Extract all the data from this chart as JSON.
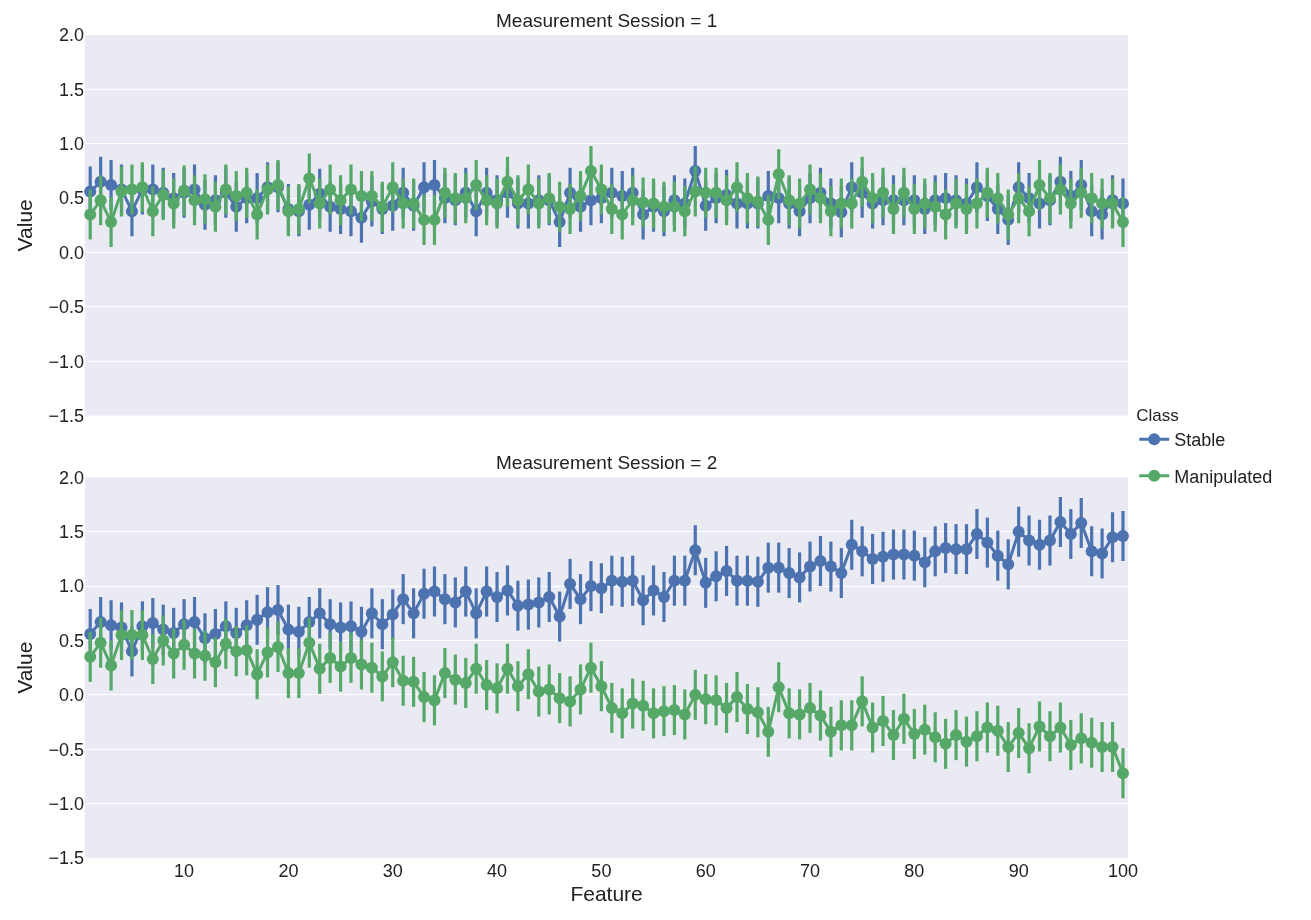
{
  "chart_data": [
    {
      "type": "line",
      "title": "Measurement Session = 1",
      "ylabel": "Value",
      "legend_title": "Class",
      "legend": "right",
      "xlim": [
        0.5,
        100.5
      ],
      "xticks": [
        10,
        20,
        30,
        40,
        50,
        60,
        70,
        80,
        90,
        100
      ],
      "ylim": [
        -1.5,
        2.0
      ],
      "yticks": [
        {
          "value": -1.5,
          "label": "−1.5"
        },
        {
          "value": -1.0,
          "label": "−1.0"
        },
        {
          "value": -0.5,
          "label": "−0.5"
        },
        {
          "value": 0.0,
          "label": "0.0"
        },
        {
          "value": 0.5,
          "label": "0.5"
        },
        {
          "value": 1.0,
          "label": "1.0"
        },
        {
          "value": 1.5,
          "label": "1.5"
        },
        {
          "value": 2.0,
          "label": "2.0"
        }
      ],
      "grid": "y",
      "marker": "circle",
      "tick_labels": "y",
      "x": [
        1,
        2,
        3,
        4,
        5,
        6,
        7,
        8,
        9,
        10,
        11,
        12,
        13,
        14,
        15,
        16,
        17,
        18,
        19,
        20,
        21,
        22,
        23,
        24,
        25,
        26,
        27,
        28,
        29,
        30,
        31,
        32,
        33,
        34,
        35,
        36,
        37,
        38,
        39,
        40,
        41,
        42,
        43,
        44,
        45,
        46,
        47,
        48,
        49,
        50,
        51,
        52,
        53,
        54,
        55,
        56,
        57,
        58,
        59,
        60,
        61,
        62,
        63,
        64,
        65,
        66,
        67,
        68,
        69,
        70,
        71,
        72,
        73,
        74,
        75,
        76,
        77,
        78,
        79,
        80,
        81,
        82,
        83,
        84,
        85,
        86,
        87,
        88,
        89,
        90,
        91,
        92,
        93,
        94,
        95,
        96,
        97,
        98,
        99,
        100
      ],
      "series": [
        {
          "name": "Stable",
          "color": "#4c72b0",
          "values": [
            0.56,
            0.65,
            0.62,
            0.58,
            0.38,
            0.58,
            0.58,
            0.55,
            0.5,
            0.55,
            0.58,
            0.44,
            0.48,
            0.55,
            0.42,
            0.5,
            0.5,
            0.6,
            0.6,
            0.4,
            0.38,
            0.44,
            0.54,
            0.42,
            0.4,
            0.38,
            0.32,
            0.47,
            0.4,
            0.43,
            0.55,
            0.43,
            0.6,
            0.62,
            0.5,
            0.48,
            0.55,
            0.38,
            0.55,
            0.48,
            0.55,
            0.45,
            0.45,
            0.48,
            0.48,
            0.28,
            0.55,
            0.42,
            0.48,
            0.5,
            0.55,
            0.52,
            0.55,
            0.35,
            0.42,
            0.38,
            0.48,
            0.45,
            0.75,
            0.43,
            0.5,
            0.53,
            0.45,
            0.45,
            0.45,
            0.52,
            0.5,
            0.45,
            0.38,
            0.5,
            0.55,
            0.45,
            0.37,
            0.6,
            0.55,
            0.45,
            0.48,
            0.48,
            0.48,
            0.48,
            0.4,
            0.48,
            0.5,
            0.48,
            0.45,
            0.6,
            0.52,
            0.4,
            0.3,
            0.6,
            0.5,
            0.45,
            0.48,
            0.65,
            0.52,
            0.62,
            0.38,
            0.35,
            0.48,
            0.45
          ],
          "errors": [
            0.23,
            0.23,
            0.23,
            0.23,
            0.23,
            0.23,
            0.23,
            0.23,
            0.23,
            0.23,
            0.23,
            0.23,
            0.23,
            0.23,
            0.23,
            0.23,
            0.23,
            0.23,
            0.23,
            0.23,
            0.23,
            0.23,
            0.23,
            0.23,
            0.23,
            0.23,
            0.23,
            0.23,
            0.23,
            0.23,
            0.23,
            0.23,
            0.23,
            0.23,
            0.23,
            0.23,
            0.23,
            0.23,
            0.23,
            0.23,
            0.23,
            0.23,
            0.23,
            0.23,
            0.23,
            0.23,
            0.23,
            0.23,
            0.23,
            0.23,
            0.23,
            0.23,
            0.23,
            0.23,
            0.23,
            0.23,
            0.23,
            0.23,
            0.23,
            0.23,
            0.23,
            0.23,
            0.23,
            0.23,
            0.23,
            0.23,
            0.23,
            0.23,
            0.23,
            0.23,
            0.23,
            0.23,
            0.23,
            0.23,
            0.23,
            0.23,
            0.23,
            0.23,
            0.23,
            0.23,
            0.23,
            0.23,
            0.23,
            0.23,
            0.23,
            0.23,
            0.23,
            0.23,
            0.23,
            0.23,
            0.23,
            0.23,
            0.23,
            0.23,
            0.23,
            0.23,
            0.23,
            0.23,
            0.23,
            0.23
          ]
        },
        {
          "name": "Manipulated",
          "color": "#55a868",
          "values": [
            0.35,
            0.48,
            0.28,
            0.56,
            0.58,
            0.6,
            0.38,
            0.53,
            0.45,
            0.57,
            0.48,
            0.49,
            0.42,
            0.58,
            0.52,
            0.55,
            0.35,
            0.58,
            0.62,
            0.38,
            0.4,
            0.68,
            0.45,
            0.58,
            0.48,
            0.58,
            0.52,
            0.52,
            0.42,
            0.6,
            0.45,
            0.45,
            0.3,
            0.3,
            0.55,
            0.5,
            0.5,
            0.62,
            0.48,
            0.45,
            0.65,
            0.48,
            0.58,
            0.45,
            0.5,
            0.42,
            0.4,
            0.52,
            0.75,
            0.58,
            0.4,
            0.35,
            0.48,
            0.46,
            0.45,
            0.42,
            0.42,
            0.38,
            0.56,
            0.55,
            0.55,
            0.48,
            0.6,
            0.5,
            0.47,
            0.3,
            0.72,
            0.48,
            0.45,
            0.58,
            0.5,
            0.38,
            0.45,
            0.45,
            0.65,
            0.5,
            0.55,
            0.4,
            0.55,
            0.4,
            0.45,
            0.42,
            0.35,
            0.45,
            0.4,
            0.45,
            0.55,
            0.5,
            0.35,
            0.5,
            0.38,
            0.62,
            0.5,
            0.58,
            0.45,
            0.55,
            0.5,
            0.45,
            0.45,
            0.28
          ],
          "errors": [
            0.23,
            0.23,
            0.23,
            0.23,
            0.23,
            0.23,
            0.23,
            0.23,
            0.23,
            0.23,
            0.23,
            0.23,
            0.23,
            0.23,
            0.23,
            0.23,
            0.23,
            0.23,
            0.23,
            0.23,
            0.23,
            0.23,
            0.23,
            0.23,
            0.23,
            0.23,
            0.23,
            0.23,
            0.23,
            0.23,
            0.23,
            0.23,
            0.23,
            0.23,
            0.23,
            0.23,
            0.23,
            0.23,
            0.23,
            0.23,
            0.23,
            0.23,
            0.23,
            0.23,
            0.23,
            0.23,
            0.23,
            0.23,
            0.23,
            0.23,
            0.23,
            0.23,
            0.23,
            0.23,
            0.23,
            0.23,
            0.23,
            0.23,
            0.23,
            0.23,
            0.23,
            0.23,
            0.23,
            0.23,
            0.23,
            0.23,
            0.23,
            0.23,
            0.23,
            0.23,
            0.23,
            0.23,
            0.23,
            0.23,
            0.23,
            0.23,
            0.23,
            0.23,
            0.23,
            0.23,
            0.23,
            0.23,
            0.23,
            0.23,
            0.23,
            0.23,
            0.23,
            0.23,
            0.23,
            0.23,
            0.23,
            0.23,
            0.23,
            0.23,
            0.23,
            0.23,
            0.23,
            0.23,
            0.23,
            0.23
          ]
        }
      ]
    },
    {
      "type": "line",
      "title": "Measurement Session = 2",
      "xlabel": "Feature",
      "ylabel": "Value",
      "xlim": [
        0.5,
        100.5
      ],
      "xticks": [
        10,
        20,
        30,
        40,
        50,
        60,
        70,
        80,
        90,
        100
      ],
      "ylim": [
        -1.5,
        2.0
      ],
      "yticks": [
        {
          "value": -1.5,
          "label": "−1.5"
        },
        {
          "value": -1.0,
          "label": "−1.0"
        },
        {
          "value": -0.5,
          "label": "−0.5"
        },
        {
          "value": 0.0,
          "label": "0.0"
        },
        {
          "value": 0.5,
          "label": "0.5"
        },
        {
          "value": 1.0,
          "label": "1.0"
        },
        {
          "value": 1.5,
          "label": "1.5"
        },
        {
          "value": 2.0,
          "label": "2.0"
        }
      ],
      "grid": "y",
      "marker": "circle",
      "x": [
        1,
        2,
        3,
        4,
        5,
        6,
        7,
        8,
        9,
        10,
        11,
        12,
        13,
        14,
        15,
        16,
        17,
        18,
        19,
        20,
        21,
        22,
        23,
        24,
        25,
        26,
        27,
        28,
        29,
        30,
        31,
        32,
        33,
        34,
        35,
        36,
        37,
        38,
        39,
        40,
        41,
        42,
        43,
        44,
        45,
        46,
        47,
        48,
        49,
        50,
        51,
        52,
        53,
        54,
        55,
        56,
        57,
        58,
        59,
        60,
        61,
        62,
        63,
        64,
        65,
        66,
        67,
        68,
        69,
        70,
        71,
        72,
        73,
        74,
        75,
        76,
        77,
        78,
        79,
        80,
        81,
        82,
        83,
        84,
        85,
        86,
        87,
        88,
        89,
        90,
        91,
        92,
        93,
        94,
        95,
        96,
        97,
        98,
        99,
        100
      ],
      "series": [
        {
          "color": "#4c72b0",
          "values": [
            0.56,
            0.67,
            0.64,
            0.62,
            0.4,
            0.63,
            0.66,
            0.6,
            0.57,
            0.65,
            0.67,
            0.52,
            0.56,
            0.63,
            0.57,
            0.64,
            0.69,
            0.76,
            0.78,
            0.6,
            0.58,
            0.67,
            0.75,
            0.65,
            0.62,
            0.63,
            0.58,
            0.75,
            0.65,
            0.74,
            0.88,
            0.75,
            0.93,
            0.95,
            0.88,
            0.85,
            0.95,
            0.75,
            0.95,
            0.9,
            0.96,
            0.82,
            0.83,
            0.85,
            0.9,
            0.72,
            1.02,
            0.88,
            1.0,
            0.98,
            1.05,
            1.04,
            1.05,
            0.87,
            0.96,
            0.9,
            1.05,
            1.05,
            1.33,
            1.03,
            1.09,
            1.14,
            1.05,
            1.05,
            1.04,
            1.17,
            1.17,
            1.12,
            1.08,
            1.18,
            1.23,
            1.18,
            1.12,
            1.38,
            1.32,
            1.25,
            1.27,
            1.29,
            1.29,
            1.28,
            1.22,
            1.32,
            1.35,
            1.34,
            1.34,
            1.48,
            1.4,
            1.28,
            1.2,
            1.5,
            1.42,
            1.38,
            1.42,
            1.59,
            1.48,
            1.58,
            1.32,
            1.3,
            1.45,
            1.46
          ],
          "errors": [
            0.23,
            0.23,
            0.23,
            0.23,
            0.23,
            0.23,
            0.23,
            0.23,
            0.23,
            0.23,
            0.23,
            0.23,
            0.23,
            0.23,
            0.23,
            0.23,
            0.23,
            0.23,
            0.23,
            0.23,
            0.23,
            0.23,
            0.23,
            0.23,
            0.23,
            0.23,
            0.23,
            0.23,
            0.23,
            0.23,
            0.23,
            0.23,
            0.23,
            0.23,
            0.23,
            0.23,
            0.23,
            0.23,
            0.23,
            0.23,
            0.23,
            0.23,
            0.23,
            0.23,
            0.23,
            0.23,
            0.23,
            0.23,
            0.23,
            0.23,
            0.23,
            0.23,
            0.23,
            0.23,
            0.23,
            0.23,
            0.23,
            0.23,
            0.23,
            0.23,
            0.23,
            0.23,
            0.23,
            0.23,
            0.23,
            0.23,
            0.23,
            0.23,
            0.23,
            0.23,
            0.23,
            0.23,
            0.23,
            0.23,
            0.23,
            0.23,
            0.23,
            0.23,
            0.23,
            0.23,
            0.23,
            0.23,
            0.23,
            0.23,
            0.23,
            0.23,
            0.23,
            0.23,
            0.23,
            0.23,
            0.23,
            0.23,
            0.23,
            0.23,
            0.23,
            0.23,
            0.23,
            0.23,
            0.23,
            0.23
          ]
        },
        {
          "color": "#55a868",
          "values": [
            0.35,
            0.48,
            0.27,
            0.55,
            0.55,
            0.55,
            0.33,
            0.5,
            0.38,
            0.46,
            0.38,
            0.36,
            0.3,
            0.47,
            0.4,
            0.41,
            0.19,
            0.39,
            0.44,
            0.2,
            0.2,
            0.48,
            0.24,
            0.34,
            0.26,
            0.34,
            0.28,
            0.25,
            0.17,
            0.3,
            0.13,
            0.12,
            -0.02,
            -0.05,
            0.2,
            0.14,
            0.11,
            0.24,
            0.09,
            0.06,
            0.24,
            0.08,
            0.19,
            0.03,
            0.05,
            -0.03,
            -0.06,
            0.05,
            0.25,
            0.08,
            -0.12,
            -0.17,
            -0.08,
            -0.1,
            -0.17,
            -0.15,
            -0.14,
            -0.18,
            0.0,
            -0.04,
            -0.05,
            -0.12,
            -0.02,
            -0.13,
            -0.16,
            -0.34,
            0.07,
            -0.17,
            -0.18,
            -0.12,
            -0.19,
            -0.34,
            -0.28,
            -0.28,
            -0.06,
            -0.3,
            -0.24,
            -0.37,
            -0.22,
            -0.36,
            -0.32,
            -0.39,
            -0.45,
            -0.37,
            -0.43,
            -0.38,
            -0.3,
            -0.33,
            -0.48,
            -0.35,
            -0.49,
            -0.29,
            -0.38,
            -0.3,
            -0.46,
            -0.4,
            -0.44,
            -0.48,
            -0.48,
            -0.72
          ],
          "errors": [
            0.23,
            0.23,
            0.23,
            0.23,
            0.23,
            0.23,
            0.23,
            0.23,
            0.23,
            0.23,
            0.23,
            0.23,
            0.23,
            0.23,
            0.23,
            0.23,
            0.23,
            0.23,
            0.23,
            0.23,
            0.23,
            0.23,
            0.23,
            0.23,
            0.23,
            0.23,
            0.23,
            0.23,
            0.23,
            0.23,
            0.23,
            0.23,
            0.23,
            0.23,
            0.23,
            0.23,
            0.23,
            0.23,
            0.23,
            0.23,
            0.23,
            0.23,
            0.23,
            0.23,
            0.23,
            0.23,
            0.23,
            0.23,
            0.23,
            0.23,
            0.23,
            0.23,
            0.23,
            0.23,
            0.23,
            0.23,
            0.23,
            0.23,
            0.23,
            0.23,
            0.23,
            0.23,
            0.23,
            0.23,
            0.23,
            0.23,
            0.23,
            0.23,
            0.23,
            0.23,
            0.23,
            0.23,
            0.23,
            0.23,
            0.23,
            0.23,
            0.23,
            0.23,
            0.23,
            0.23,
            0.23,
            0.23,
            0.23,
            0.23,
            0.23,
            0.23,
            0.23,
            0.23,
            0.23,
            0.23,
            0.23,
            0.23,
            0.23,
            0.23,
            0.23,
            0.23,
            0.23,
            0.23,
            0.23,
            0.23
          ]
        }
      ]
    }
  ]
}
